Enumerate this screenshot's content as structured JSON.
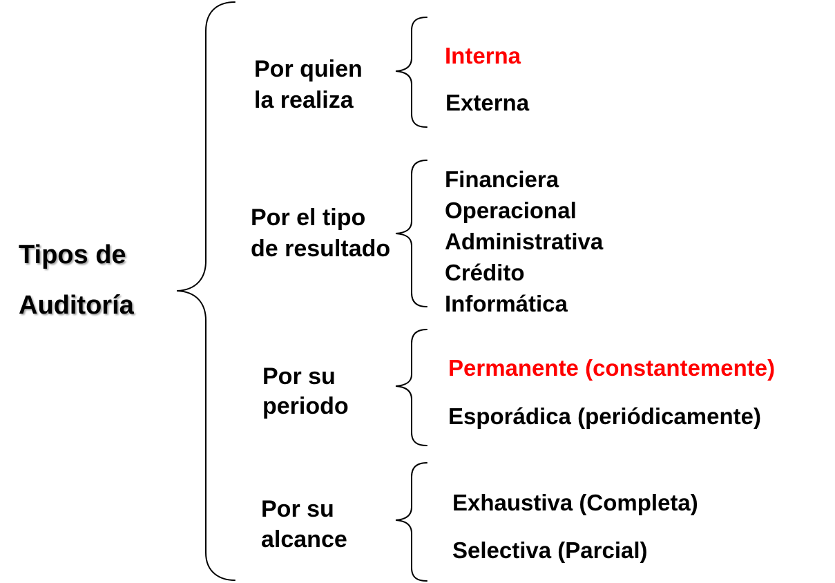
{
  "root": {
    "line1": "Tipos de",
    "line2": "Auditoría"
  },
  "colors": {
    "highlight": "#ff0000",
    "text": "#000000"
  },
  "categories": [
    {
      "line1": "Por quien",
      "line2": "la realiza",
      "items": [
        {
          "label": "Interna",
          "highlight": true
        },
        {
          "label": "Externa",
          "highlight": false
        }
      ]
    },
    {
      "line1": "Por el tipo",
      "line2": "de resultado",
      "items": [
        {
          "label": "Financiera",
          "highlight": false
        },
        {
          "label": "Operacional",
          "highlight": false
        },
        {
          "label": "Administrativa",
          "highlight": false
        },
        {
          "label": "Crédito",
          "highlight": false
        },
        {
          "label": "Informática",
          "highlight": false
        }
      ]
    },
    {
      "line1": "Por su",
      "line2": "periodo",
      "items": [
        {
          "label": "Permanente (constantemente)",
          "highlight": true
        },
        {
          "label": "Esporádica (periódicamente)",
          "highlight": false
        }
      ]
    },
    {
      "line1": "Por su",
      "line2": "alcance",
      "items": [
        {
          "label": "Exhaustiva (Completa)",
          "highlight": false
        },
        {
          "label": "Selectiva (Parcial)",
          "highlight": false
        }
      ]
    }
  ]
}
